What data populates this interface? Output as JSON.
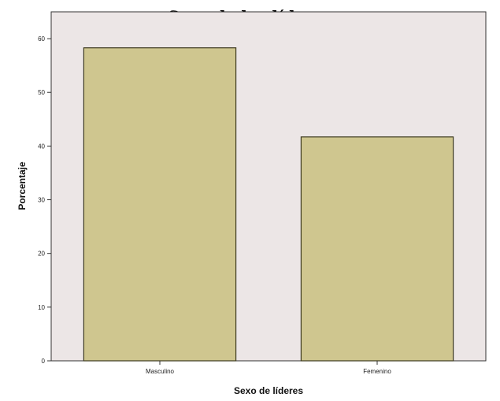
{
  "chart_data": {
    "type": "bar",
    "title": "Sexo de los líderes",
    "xlabel": "Sexo de líderes",
    "ylabel": "Porcentaje",
    "categories": [
      "Masculino",
      "Femenino"
    ],
    "values": [
      58.3,
      41.7
    ],
    "ylim": [
      0,
      65
    ],
    "yticks": [
      0,
      10,
      20,
      30,
      40,
      50,
      60
    ],
    "grid": false,
    "legend": "none",
    "colors": {
      "bar_fill": "#cfc68f",
      "bar_stroke": "#3d3a1e",
      "plot_bg": "#ece6e6",
      "axis": "#333333"
    }
  }
}
